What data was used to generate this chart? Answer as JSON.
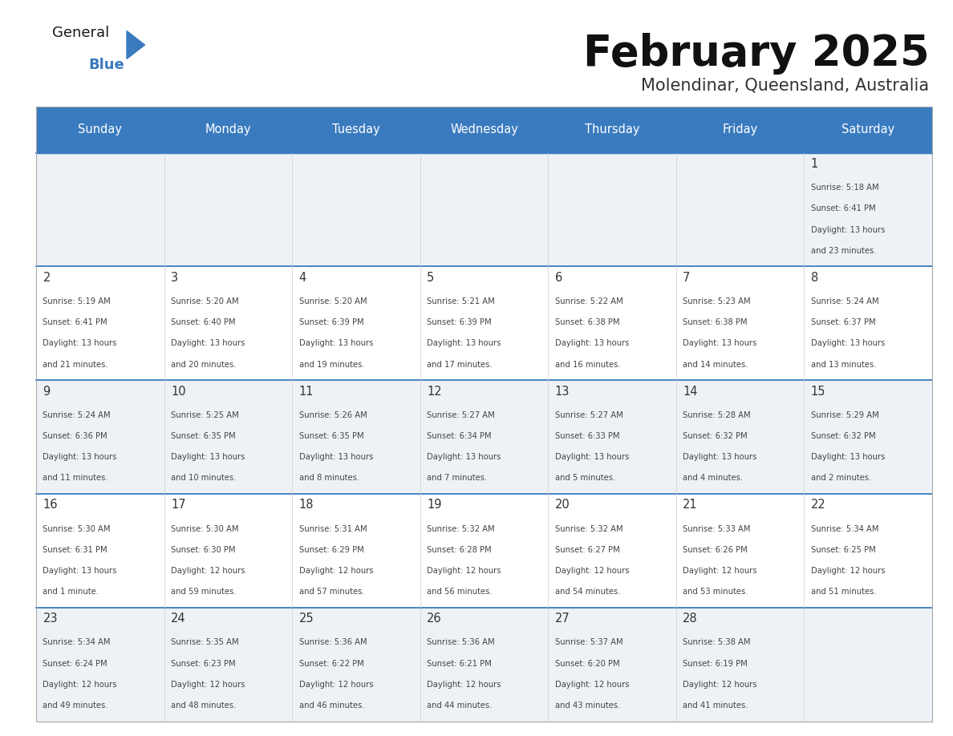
{
  "title": "February 2025",
  "subtitle": "Molendinar, Queensland, Australia",
  "header_bg": "#3a7bbf",
  "header_text_color": "#ffffff",
  "cell_bg_odd": "#eef2f7",
  "cell_bg_even": "#ffffff",
  "day_headers": [
    "Sunday",
    "Monday",
    "Tuesday",
    "Wednesday",
    "Thursday",
    "Friday",
    "Saturday"
  ],
  "line_color": "#3a7bbf",
  "day_number_color": "#333333",
  "cell_text_color": "#444444",
  "calendar_data": [
    [
      null,
      null,
      null,
      null,
      null,
      null,
      {
        "day": 1,
        "sunrise": "5:18 AM",
        "sunset": "6:41 PM",
        "daylight_l1": "13 hours",
        "daylight_l2": "and 23 minutes."
      }
    ],
    [
      {
        "day": 2,
        "sunrise": "5:19 AM",
        "sunset": "6:41 PM",
        "daylight_l1": "13 hours",
        "daylight_l2": "and 21 minutes."
      },
      {
        "day": 3,
        "sunrise": "5:20 AM",
        "sunset": "6:40 PM",
        "daylight_l1": "13 hours",
        "daylight_l2": "and 20 minutes."
      },
      {
        "day": 4,
        "sunrise": "5:20 AM",
        "sunset": "6:39 PM",
        "daylight_l1": "13 hours",
        "daylight_l2": "and 19 minutes."
      },
      {
        "day": 5,
        "sunrise": "5:21 AM",
        "sunset": "6:39 PM",
        "daylight_l1": "13 hours",
        "daylight_l2": "and 17 minutes."
      },
      {
        "day": 6,
        "sunrise": "5:22 AM",
        "sunset": "6:38 PM",
        "daylight_l1": "13 hours",
        "daylight_l2": "and 16 minutes."
      },
      {
        "day": 7,
        "sunrise": "5:23 AM",
        "sunset": "6:38 PM",
        "daylight_l1": "13 hours",
        "daylight_l2": "and 14 minutes."
      },
      {
        "day": 8,
        "sunrise": "5:24 AM",
        "sunset": "6:37 PM",
        "daylight_l1": "13 hours",
        "daylight_l2": "and 13 minutes."
      }
    ],
    [
      {
        "day": 9,
        "sunrise": "5:24 AM",
        "sunset": "6:36 PM",
        "daylight_l1": "13 hours",
        "daylight_l2": "and 11 minutes."
      },
      {
        "day": 10,
        "sunrise": "5:25 AM",
        "sunset": "6:35 PM",
        "daylight_l1": "13 hours",
        "daylight_l2": "and 10 minutes."
      },
      {
        "day": 11,
        "sunrise": "5:26 AM",
        "sunset": "6:35 PM",
        "daylight_l1": "13 hours",
        "daylight_l2": "and 8 minutes."
      },
      {
        "day": 12,
        "sunrise": "5:27 AM",
        "sunset": "6:34 PM",
        "daylight_l1": "13 hours",
        "daylight_l2": "and 7 minutes."
      },
      {
        "day": 13,
        "sunrise": "5:27 AM",
        "sunset": "6:33 PM",
        "daylight_l1": "13 hours",
        "daylight_l2": "and 5 minutes."
      },
      {
        "day": 14,
        "sunrise": "5:28 AM",
        "sunset": "6:32 PM",
        "daylight_l1": "13 hours",
        "daylight_l2": "and 4 minutes."
      },
      {
        "day": 15,
        "sunrise": "5:29 AM",
        "sunset": "6:32 PM",
        "daylight_l1": "13 hours",
        "daylight_l2": "and 2 minutes."
      }
    ],
    [
      {
        "day": 16,
        "sunrise": "5:30 AM",
        "sunset": "6:31 PM",
        "daylight_l1": "13 hours",
        "daylight_l2": "and 1 minute."
      },
      {
        "day": 17,
        "sunrise": "5:30 AM",
        "sunset": "6:30 PM",
        "daylight_l1": "12 hours",
        "daylight_l2": "and 59 minutes."
      },
      {
        "day": 18,
        "sunrise": "5:31 AM",
        "sunset": "6:29 PM",
        "daylight_l1": "12 hours",
        "daylight_l2": "and 57 minutes."
      },
      {
        "day": 19,
        "sunrise": "5:32 AM",
        "sunset": "6:28 PM",
        "daylight_l1": "12 hours",
        "daylight_l2": "and 56 minutes."
      },
      {
        "day": 20,
        "sunrise": "5:32 AM",
        "sunset": "6:27 PM",
        "daylight_l1": "12 hours",
        "daylight_l2": "and 54 minutes."
      },
      {
        "day": 21,
        "sunrise": "5:33 AM",
        "sunset": "6:26 PM",
        "daylight_l1": "12 hours",
        "daylight_l2": "and 53 minutes."
      },
      {
        "day": 22,
        "sunrise": "5:34 AM",
        "sunset": "6:25 PM",
        "daylight_l1": "12 hours",
        "daylight_l2": "and 51 minutes."
      }
    ],
    [
      {
        "day": 23,
        "sunrise": "5:34 AM",
        "sunset": "6:24 PM",
        "daylight_l1": "12 hours",
        "daylight_l2": "and 49 minutes."
      },
      {
        "day": 24,
        "sunrise": "5:35 AM",
        "sunset": "6:23 PM",
        "daylight_l1": "12 hours",
        "daylight_l2": "and 48 minutes."
      },
      {
        "day": 25,
        "sunrise": "5:36 AM",
        "sunset": "6:22 PM",
        "daylight_l1": "12 hours",
        "daylight_l2": "and 46 minutes."
      },
      {
        "day": 26,
        "sunrise": "5:36 AM",
        "sunset": "6:21 PM",
        "daylight_l1": "12 hours",
        "daylight_l2": "and 44 minutes."
      },
      {
        "day": 27,
        "sunrise": "5:37 AM",
        "sunset": "6:20 PM",
        "daylight_l1": "12 hours",
        "daylight_l2": "and 43 minutes."
      },
      {
        "day": 28,
        "sunrise": "5:38 AM",
        "sunset": "6:19 PM",
        "daylight_l1": "12 hours",
        "daylight_l2": "and 41 minutes."
      },
      null
    ]
  ],
  "logo_text_general": "General",
  "logo_text_blue": "Blue",
  "logo_color_general": "#1a1a1a",
  "logo_color_blue": "#3a7bbf",
  "logo_triangle_color": "#3a7bbf"
}
